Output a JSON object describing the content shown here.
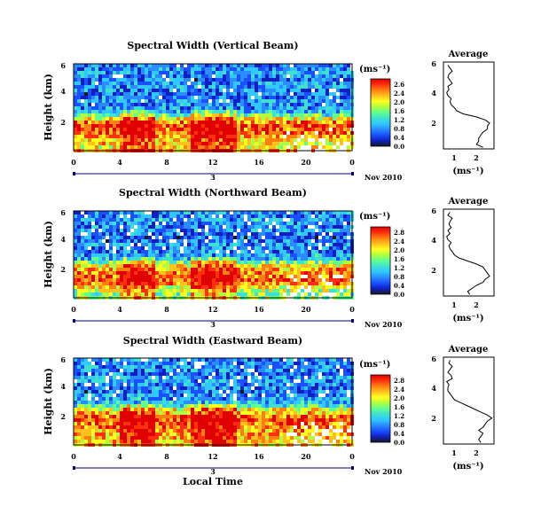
{
  "colors": {
    "scale": [
      "#1a1a1a",
      "#1020c0",
      "#1a50ff",
      "#2a8cff",
      "#30c8ff",
      "#40e0d0",
      "#60ff90",
      "#b0ff40",
      "#ffff20",
      "#ffc020",
      "#ff8010",
      "#ff3010",
      "#e00000"
    ],
    "missing": "#ffffff",
    "axis": "#000000",
    "time_axis": "#000080"
  },
  "chart_data": [
    {
      "type": "heatmap",
      "title": "Spectral Width (Vertical Beam)",
      "xlabel": "",
      "ylabel": "Height (km)",
      "xlim": [
        0,
        24
      ],
      "ylim": [
        0.3,
        6
      ],
      "x_ticks": [
        "0",
        "4",
        "8",
        "12",
        "16",
        "20",
        "0"
      ],
      "y_ticks": [
        "6",
        "4",
        "2"
      ],
      "day_label": "3",
      "date_label": "Nov 2010",
      "colorbar": {
        "unit": "(ms⁻¹)",
        "range": [
          0.0,
          2.8
        ],
        "ticks": [
          "2.6",
          "2.4",
          "2.0",
          "1.6",
          "1.2",
          "0.8",
          "0.4",
          "0.0"
        ]
      },
      "profile": {
        "title": "Average",
        "xlabel": "(ms⁻¹)",
        "x_ticks": [
          "1",
          "2"
        ],
        "y_ticks": [
          "6",
          "4",
          "2"
        ],
        "xlim": [
          0.4,
          2.7
        ],
        "ylim": [
          0.3,
          6
        ],
        "heights": [
          0.4,
          0.6,
          0.8,
          1.0,
          1.2,
          1.4,
          1.6,
          1.8,
          2.0,
          2.2,
          2.4,
          2.6,
          2.8,
          3.0,
          3.2,
          3.4,
          3.6,
          3.8,
          4.0,
          4.2,
          4.4,
          4.6,
          4.8,
          5.0,
          5.2,
          5.4,
          5.6,
          5.8
        ],
        "values": [
          2.2,
          1.9,
          2.0,
          2.0,
          2.1,
          2.2,
          2.4,
          2.4,
          2.5,
          2.3,
          1.9,
          1.3,
          1.0,
          0.9,
          0.75,
          0.7,
          0.75,
          0.6,
          0.55,
          0.65,
          0.6,
          0.8,
          0.7,
          0.6,
          0.65,
          0.8,
          0.7,
          0.6
        ]
      }
    },
    {
      "type": "heatmap",
      "title": "Spectral Width (Northward Beam)",
      "xlabel": "",
      "ylabel": "Height (km)",
      "xlim": [
        0,
        24
      ],
      "ylim": [
        0.3,
        6
      ],
      "x_ticks": [
        "0",
        "4",
        "8",
        "12",
        "16",
        "20",
        "0"
      ],
      "y_ticks": [
        "6",
        "4",
        "2"
      ],
      "day_label": "3",
      "date_label": "Nov 2010",
      "colorbar": {
        "unit": "(ms⁻¹)",
        "range": [
          0.0,
          2.8
        ],
        "ticks": [
          "2.8",
          "2.4",
          "2.0",
          "1.6",
          "1.2",
          "0.8",
          "0.4",
          "0.0"
        ]
      },
      "profile": {
        "title": "Average",
        "xlabel": "(ms⁻¹)",
        "x_ticks": [
          "1",
          "2"
        ],
        "y_ticks": [
          "6",
          "4",
          "2"
        ],
        "xlim": [
          0.4,
          2.7
        ],
        "ylim": [
          0.3,
          6
        ],
        "heights": [
          0.4,
          0.6,
          0.8,
          1.0,
          1.2,
          1.4,
          1.6,
          1.8,
          2.0,
          2.2,
          2.4,
          2.6,
          2.8,
          3.0,
          3.2,
          3.4,
          3.6,
          3.8,
          4.0,
          4.2,
          4.4,
          4.6,
          4.8,
          5.0,
          5.2,
          5.4,
          5.6,
          5.8
        ],
        "values": [
          1.6,
          1.5,
          1.7,
          1.9,
          2.2,
          2.3,
          2.5,
          2.4,
          2.3,
          2.2,
          1.9,
          1.5,
          1.1,
          0.9,
          0.8,
          0.7,
          0.65,
          0.75,
          0.6,
          0.55,
          0.7,
          0.6,
          0.75,
          0.65,
          0.7,
          0.8,
          0.6,
          0.7
        ]
      }
    },
    {
      "type": "heatmap",
      "title": "Spectral Width (Eastward Beam)",
      "xlabel": "Local Time",
      "ylabel": "Height (km)",
      "xlim": [
        0,
        24
      ],
      "ylim": [
        0.3,
        6
      ],
      "x_ticks": [
        "0",
        "4",
        "8",
        "12",
        "16",
        "20",
        "0"
      ],
      "y_ticks": [
        "6",
        "4",
        "2"
      ],
      "day_label": "3",
      "date_label": "Nov 2010",
      "colorbar": {
        "unit": "(ms⁻¹)",
        "range": [
          0.0,
          2.8
        ],
        "ticks": [
          "2.8",
          "2.4",
          "2.0",
          "1.6",
          "1.2",
          "0.8",
          "0.4",
          "0.0"
        ]
      },
      "profile": {
        "title": "Average",
        "xlabel": "(ms⁻¹)",
        "x_ticks": [
          "1",
          "2"
        ],
        "y_ticks": [
          "6",
          "4",
          "2"
        ],
        "xlim": [
          0.4,
          2.7
        ],
        "ylim": [
          0.3,
          6
        ],
        "heights": [
          0.4,
          0.6,
          0.8,
          1.0,
          1.2,
          1.4,
          1.6,
          1.8,
          2.0,
          2.2,
          2.4,
          2.6,
          2.8,
          3.0,
          3.2,
          3.4,
          3.6,
          3.8,
          4.0,
          4.2,
          4.4,
          4.6,
          4.8,
          5.0,
          5.2,
          5.4,
          5.6,
          5.8
        ],
        "values": [
          2.1,
          2.0,
          2.1,
          2.2,
          2.0,
          2.2,
          2.3,
          2.4,
          2.6,
          2.4,
          2.1,
          1.8,
          1.5,
          1.2,
          0.9,
          0.8,
          0.7,
          0.6,
          0.6,
          0.65,
          0.55,
          0.8,
          0.75,
          0.6,
          0.7,
          0.8,
          0.65,
          0.7
        ]
      }
    }
  ]
}
